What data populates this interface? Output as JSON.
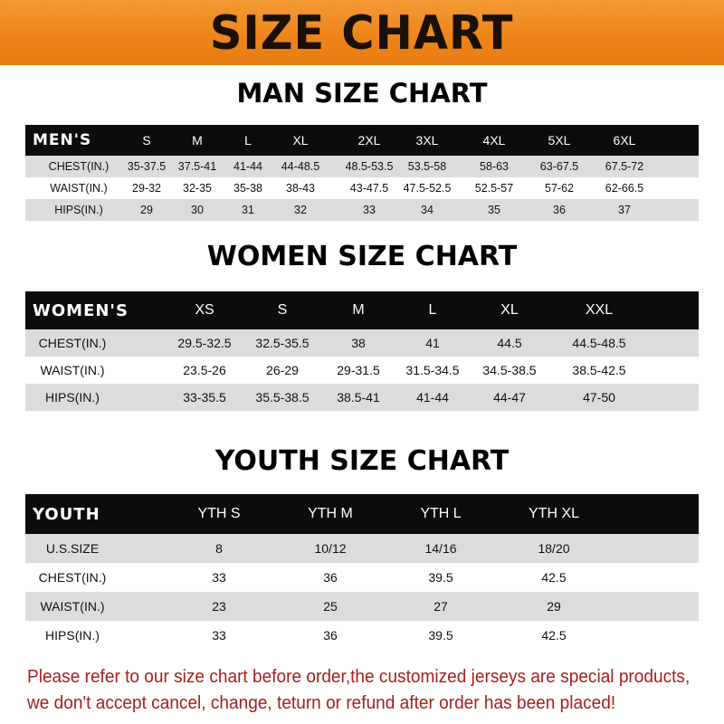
{
  "banner": {
    "title": "SIZE CHART"
  },
  "men": {
    "title": "MAN SIZE CHART",
    "header": "MEN'S",
    "sizes": [
      "S",
      "M",
      "L",
      "XL",
      "2XL",
      "3XL",
      "4XL",
      "5XL",
      "6XL"
    ],
    "rows": [
      {
        "label": "CHEST(IN.)",
        "values": [
          "35-37.5",
          "37.5-41",
          "41-44",
          "44-48.5",
          "48.5-53.5",
          "53.5-58",
          "58-63",
          "63-67.5",
          "67.5-72"
        ]
      },
      {
        "label": "WAIST(IN.)",
        "values": [
          "29-32",
          "32-35",
          "35-38",
          "38-43",
          "43-47.5",
          "47.5-52.5",
          "52.5-57",
          "57-62",
          "62-66.5"
        ]
      },
      {
        "label": "HIPS(IN.)",
        "values": [
          "29",
          "30",
          "31",
          "32",
          "33",
          "34",
          "35",
          "36",
          "37"
        ]
      }
    ]
  },
  "women": {
    "title": "WOMEN SIZE CHART",
    "header": "WOMEN'S",
    "sizes": [
      "XS",
      "S",
      "M",
      "L",
      "XL",
      "XXL"
    ],
    "rows": [
      {
        "label": "CHEST(IN.)",
        "values": [
          "29.5-32.5",
          "32.5-35.5",
          "38",
          "41",
          "44.5",
          "44.5-48.5"
        ]
      },
      {
        "label": "WAIST(IN.)",
        "values": [
          "23.5-26",
          "26-29",
          "29-31.5",
          "31.5-34.5",
          "34.5-38.5",
          "38.5-42.5"
        ]
      },
      {
        "label": "HIPS(IN.)",
        "values": [
          "33-35.5",
          "35.5-38.5",
          "38.5-41",
          "41-44",
          "44-47",
          "47-50"
        ]
      }
    ]
  },
  "youth": {
    "title": "YOUTH SIZE CHART",
    "header": "YOUTH",
    "sizes": [
      "YTH S",
      "YTH M",
      "YTH L",
      "YTH XL"
    ],
    "rows": [
      {
        "label": "U.S.SIZE",
        "values": [
          "8",
          "10/12",
          "14/16",
          "18/20"
        ]
      },
      {
        "label": "CHEST(IN.)",
        "values": [
          "33",
          "36",
          "39.5",
          "42.5"
        ]
      },
      {
        "label": "WAIST(IN.)",
        "values": [
          "23",
          "25",
          "27",
          "29"
        ]
      },
      {
        "label": "HIPS(IN.)",
        "values": [
          "33",
          "36",
          "39.5",
          "42.5"
        ]
      }
    ]
  },
  "note": {
    "line1": "Please refer to our size chart before order,the customized jerseys are special products,",
    "line2": "we don't accept cancel, change, teturn or refund after order has been placed!"
  },
  "colors": {
    "banner": "#ee8419",
    "header_row": "#0c0c0c",
    "stripe": "#dcdcdc",
    "note": "#a3201c"
  }
}
